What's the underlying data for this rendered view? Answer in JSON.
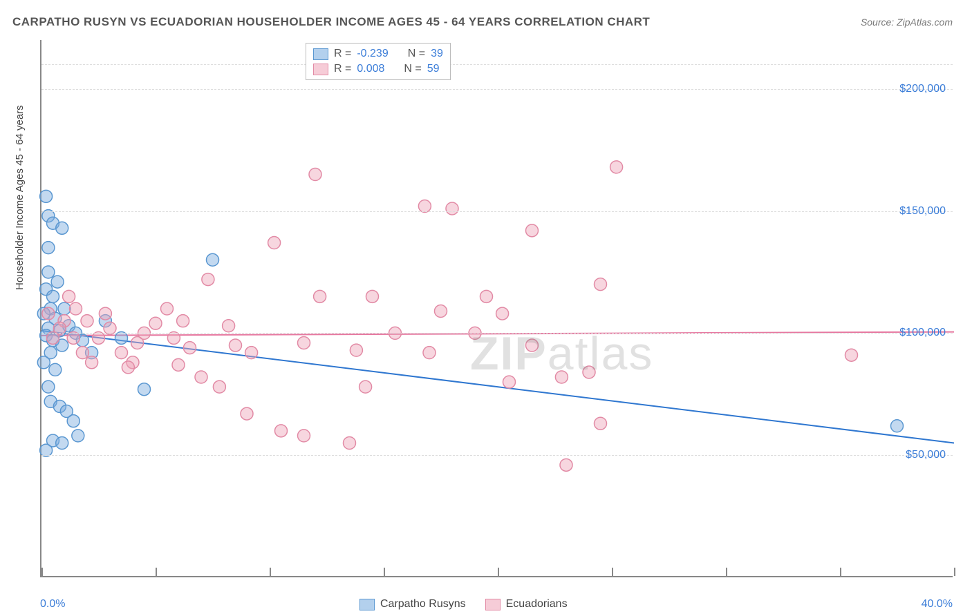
{
  "title": "CARPATHO RUSYN VS ECUADORIAN HOUSEHOLDER INCOME AGES 45 - 64 YEARS CORRELATION CHART",
  "source": "Source: ZipAtlas.com",
  "watermark_zip": "ZIP",
  "watermark_atlas": "atlas",
  "ylabel": "Householder Income Ages 45 - 64 years",
  "chart": {
    "type": "scatter",
    "xlim": [
      0,
      40
    ],
    "ylim": [
      0,
      220000
    ],
    "x_ticks": [
      0,
      5,
      10,
      15,
      20,
      25,
      30,
      35,
      40
    ],
    "x_tick_labels": {
      "0": "0.0%",
      "40": "40.0%"
    },
    "y_gridlines": [
      50000,
      100000,
      150000,
      200000,
      210000
    ],
    "y_tick_labels": {
      "50000": "$50,000",
      "100000": "$100,000",
      "150000": "$150,000",
      "200000": "$200,000"
    },
    "marker_radius": 9,
    "marker_stroke_width": 1.5,
    "line_width": 2,
    "background_color": "#ffffff",
    "grid_color": "#dddddd",
    "axis_color": "#888888",
    "series": [
      {
        "name": "Carpatho Rusyns",
        "color": "#7aaade",
        "fill": "rgba(122,170,222,0.45)",
        "stroke": "#5a97d1",
        "line_color": "#2f77d0",
        "R": -0.239,
        "N": 39,
        "trend": {
          "x1": 0,
          "y1": 101000,
          "x2": 40,
          "y2": 55000
        },
        "points": [
          {
            "x": 0.2,
            "y": 156000
          },
          {
            "x": 0.3,
            "y": 148000
          },
          {
            "x": 0.5,
            "y": 145000
          },
          {
            "x": 0.9,
            "y": 143000
          },
          {
            "x": 0.3,
            "y": 125000
          },
          {
            "x": 0.2,
            "y": 118000
          },
          {
            "x": 0.5,
            "y": 115000
          },
          {
            "x": 0.4,
            "y": 110000
          },
          {
            "x": 0.1,
            "y": 108000
          },
          {
            "x": 0.6,
            "y": 106000
          },
          {
            "x": 0.3,
            "y": 102000
          },
          {
            "x": 0.8,
            "y": 101000
          },
          {
            "x": 0.2,
            "y": 99000
          },
          {
            "x": 0.5,
            "y": 97000
          },
          {
            "x": 0.9,
            "y": 95000
          },
          {
            "x": 0.4,
            "y": 92000
          },
          {
            "x": 0.1,
            "y": 88000
          },
          {
            "x": 0.6,
            "y": 85000
          },
          {
            "x": 1.2,
            "y": 103000
          },
          {
            "x": 1.5,
            "y": 100000
          },
          {
            "x": 1.8,
            "y": 97000
          },
          {
            "x": 0.3,
            "y": 78000
          },
          {
            "x": 0.4,
            "y": 72000
          },
          {
            "x": 0.8,
            "y": 70000
          },
          {
            "x": 1.1,
            "y": 68000
          },
          {
            "x": 1.4,
            "y": 64000
          },
          {
            "x": 0.5,
            "y": 56000
          },
          {
            "x": 0.9,
            "y": 55000
          },
          {
            "x": 1.6,
            "y": 58000
          },
          {
            "x": 0.2,
            "y": 52000
          },
          {
            "x": 7.5,
            "y": 130000
          },
          {
            "x": 4.5,
            "y": 77000
          },
          {
            "x": 2.2,
            "y": 92000
          },
          {
            "x": 2.8,
            "y": 105000
          },
          {
            "x": 3.5,
            "y": 98000
          },
          {
            "x": 0.7,
            "y": 121000
          },
          {
            "x": 0.3,
            "y": 135000
          },
          {
            "x": 1.0,
            "y": 110000
          },
          {
            "x": 37.5,
            "y": 62000
          }
        ]
      },
      {
        "name": "Ecuadorians",
        "color": "#eea3b7",
        "fill": "rgba(238,163,183,0.45)",
        "stroke": "#e28aa5",
        "line_color": "#e678a0",
        "R": 0.008,
        "N": 59,
        "trend": {
          "x1": 0,
          "y1": 99000,
          "x2": 40,
          "y2": 100500
        },
        "points": [
          {
            "x": 12.0,
            "y": 165000
          },
          {
            "x": 25.2,
            "y": 168000
          },
          {
            "x": 16.8,
            "y": 152000
          },
          {
            "x": 18.0,
            "y": 151000
          },
          {
            "x": 21.5,
            "y": 142000
          },
          {
            "x": 10.2,
            "y": 137000
          },
          {
            "x": 24.5,
            "y": 120000
          },
          {
            "x": 7.3,
            "y": 122000
          },
          {
            "x": 14.5,
            "y": 115000
          },
          {
            "x": 12.2,
            "y": 115000
          },
          {
            "x": 19.5,
            "y": 115000
          },
          {
            "x": 17.5,
            "y": 109000
          },
          {
            "x": 20.2,
            "y": 108000
          },
          {
            "x": 5.5,
            "y": 110000
          },
          {
            "x": 6.2,
            "y": 105000
          },
          {
            "x": 8.5,
            "y": 95000
          },
          {
            "x": 9.2,
            "y": 92000
          },
          {
            "x": 11.5,
            "y": 96000
          },
          {
            "x": 13.8,
            "y": 93000
          },
          {
            "x": 17.0,
            "y": 92000
          },
          {
            "x": 21.5,
            "y": 95000
          },
          {
            "x": 22.8,
            "y": 82000
          },
          {
            "x": 24.0,
            "y": 84000
          },
          {
            "x": 24.5,
            "y": 63000
          },
          {
            "x": 23.0,
            "y": 46000
          },
          {
            "x": 20.5,
            "y": 80000
          },
          {
            "x": 35.5,
            "y": 91000
          },
          {
            "x": 7.0,
            "y": 82000
          },
          {
            "x": 7.8,
            "y": 78000
          },
          {
            "x": 9.0,
            "y": 67000
          },
          {
            "x": 10.5,
            "y": 60000
          },
          {
            "x": 11.5,
            "y": 58000
          },
          {
            "x": 13.5,
            "y": 55000
          },
          {
            "x": 14.2,
            "y": 78000
          },
          {
            "x": 2.0,
            "y": 105000
          },
          {
            "x": 2.5,
            "y": 98000
          },
          {
            "x": 3.0,
            "y": 102000
          },
          {
            "x": 3.5,
            "y": 92000
          },
          {
            "x": 4.0,
            "y": 88000
          },
          {
            "x": 4.5,
            "y": 100000
          },
          {
            "x": 1.5,
            "y": 110000
          },
          {
            "x": 1.0,
            "y": 105000
          },
          {
            "x": 0.5,
            "y": 98000
          },
          {
            "x": 1.8,
            "y": 92000
          },
          {
            "x": 2.2,
            "y": 88000
          },
          {
            "x": 5.8,
            "y": 98000
          },
          {
            "x": 6.5,
            "y": 94000
          },
          {
            "x": 6.0,
            "y": 87000
          },
          {
            "x": 2.8,
            "y": 108000
          },
          {
            "x": 1.2,
            "y": 115000
          },
          {
            "x": 0.8,
            "y": 102000
          },
          {
            "x": 1.4,
            "y": 98000
          },
          {
            "x": 5.0,
            "y": 104000
          },
          {
            "x": 4.2,
            "y": 96000
          },
          {
            "x": 3.8,
            "y": 86000
          },
          {
            "x": 8.2,
            "y": 103000
          },
          {
            "x": 15.5,
            "y": 100000
          },
          {
            "x": 19.0,
            "y": 100000
          },
          {
            "x": 0.3,
            "y": 108000
          }
        ]
      }
    ]
  },
  "legend_top": {
    "rows": [
      {
        "swatch": "blue",
        "r_label": "R =",
        "r_val": "-0.239",
        "n_label": "N =",
        "n_val": "39"
      },
      {
        "swatch": "pink",
        "r_label": "R =",
        "r_val": "0.008",
        "n_label": "N =",
        "n_val": "59"
      }
    ]
  },
  "legend_bottom": {
    "items": [
      {
        "swatch": "blue",
        "label": "Carpatho Rusyns"
      },
      {
        "swatch": "pink",
        "label": "Ecuadorians"
      }
    ]
  }
}
